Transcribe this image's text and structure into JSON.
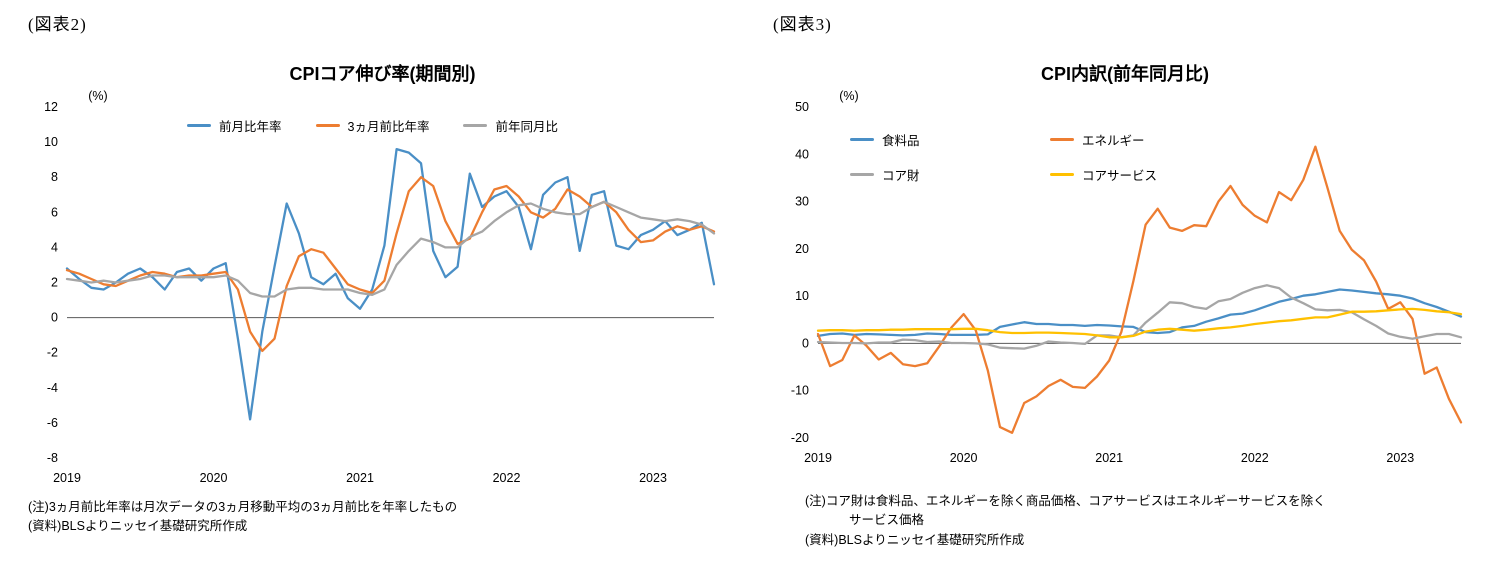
{
  "page": {
    "figure2_label": "(図表2)",
    "figure3_label": "(図表3)"
  },
  "chart_data": [
    {
      "type": "line",
      "title": "CPIコア伸び率(期間別)",
      "unit_label": "(%)",
      "x_start_month": "2019-01",
      "x_tick_labels": [
        "2019",
        "2020",
        "2021",
        "2022",
        "2023"
      ],
      "x_tick_month_indices": [
        0,
        12,
        24,
        36,
        48
      ],
      "ylim": [
        -8,
        12
      ],
      "yticks": [
        12,
        10,
        8,
        6,
        4,
        2,
        0,
        -2,
        -4,
        -6,
        -8
      ],
      "grid": false,
      "legend_position": "top-center-inside",
      "series": [
        {
          "name": "前月比年率",
          "key": "mom-annualized",
          "color": "#4A8FC6",
          "values": [
            2.8,
            2.2,
            1.7,
            1.6,
            2.0,
            2.5,
            2.8,
            2.3,
            1.6,
            2.6,
            2.8,
            2.1,
            2.8,
            3.1,
            -1.2,
            -5.8,
            -0.8,
            2.9,
            6.5,
            4.8,
            2.3,
            1.9,
            2.5,
            1.1,
            0.5,
            1.6,
            4.1,
            9.6,
            9.4,
            8.8,
            3.8,
            2.3,
            2.9,
            8.2,
            6.3,
            6.9,
            7.2,
            6.3,
            3.9,
            7.0,
            7.7,
            8.0,
            3.8,
            7.0,
            7.2,
            4.1,
            3.9,
            4.7,
            5.0,
            5.5,
            4.7,
            5.0,
            5.4,
            1.9
          ]
        },
        {
          "name": "3ヵ月前比年率",
          "key": "three-month-annualized",
          "color": "#ED7D31",
          "values": [
            2.7,
            2.5,
            2.2,
            1.9,
            1.8,
            2.1,
            2.4,
            2.6,
            2.5,
            2.3,
            2.4,
            2.4,
            2.5,
            2.6,
            1.6,
            -0.8,
            -1.9,
            -1.2,
            1.8,
            3.5,
            3.9,
            3.7,
            2.8,
            1.9,
            1.6,
            1.4,
            2.1,
            4.8,
            7.2,
            8.0,
            7.5,
            5.5,
            4.2,
            4.5,
            6.0,
            7.3,
            7.5,
            6.9,
            6.0,
            5.7,
            6.2,
            7.3,
            6.9,
            6.3,
            6.6,
            6.0,
            5.0,
            4.3,
            4.4,
            4.9,
            5.2,
            5.0,
            5.2,
            4.9
          ]
        },
        {
          "name": "前年同月比",
          "key": "year-over-year",
          "color": "#A6A6A6",
          "values": [
            2.2,
            2.1,
            2.0,
            2.1,
            2.0,
            2.1,
            2.2,
            2.4,
            2.4,
            2.3,
            2.3,
            2.3,
            2.3,
            2.4,
            2.1,
            1.4,
            1.2,
            1.2,
            1.6,
            1.7,
            1.7,
            1.6,
            1.6,
            1.6,
            1.4,
            1.3,
            1.6,
            3.0,
            3.8,
            4.5,
            4.3,
            4.0,
            4.0,
            4.6,
            4.9,
            5.5,
            6.0,
            6.4,
            6.5,
            6.2,
            6.0,
            5.9,
            5.9,
            6.3,
            6.6,
            6.3,
            6.0,
            5.7,
            5.6,
            5.5,
            5.6,
            5.5,
            5.3,
            4.8
          ]
        }
      ],
      "notes": [
        "(注)3ヵ月前比年率は月次データの3ヵ月移動平均の3ヵ月前比を年率したもの",
        "(資料)BLSよりニッセイ基礎研究所作成"
      ]
    },
    {
      "type": "line",
      "title": "CPI内訳(前年同月比)",
      "unit_label": "(%)",
      "x_start_month": "2019-01",
      "x_tick_labels": [
        "2019",
        "2020",
        "2021",
        "2022",
        "2023"
      ],
      "x_tick_month_indices": [
        0,
        12,
        24,
        36,
        48
      ],
      "ylim": [
        -20,
        50
      ],
      "yticks": [
        50,
        40,
        30,
        20,
        10,
        0,
        -10,
        -20
      ],
      "grid": false,
      "legend_position": "top-left-inside",
      "series": [
        {
          "name": "食料品",
          "key": "food",
          "color": "#4A8FC6",
          "values": [
            1.6,
            2.0,
            2.1,
            1.8,
            2.0,
            1.9,
            1.8,
            1.7,
            1.8,
            2.1,
            2.0,
            1.8,
            1.8,
            1.8,
            1.9,
            3.5,
            4.0,
            4.5,
            4.1,
            4.1,
            3.9,
            3.9,
            3.7,
            3.9,
            3.8,
            3.6,
            3.5,
            2.4,
            2.2,
            2.4,
            3.4,
            3.7,
            4.6,
            5.3,
            6.1,
            6.3,
            7.0,
            7.9,
            8.8,
            9.4,
            10.1,
            10.4,
            10.9,
            11.4,
            11.2,
            10.9,
            10.6,
            10.4,
            10.1,
            9.5,
            8.5,
            7.7,
            6.7,
            5.7
          ]
        },
        {
          "name": "エネルギー",
          "key": "energy",
          "color": "#ED7D31",
          "values": [
            2.0,
            -4.8,
            -3.5,
            1.7,
            -0.5,
            -3.4,
            -2.0,
            -4.4,
            -4.8,
            -4.2,
            -0.6,
            3.4,
            6.2,
            2.8,
            -5.7,
            -17.7,
            -18.9,
            -12.6,
            -11.2,
            -9.0,
            -7.7,
            -9.2,
            -9.4,
            -7.0,
            -3.6,
            2.4,
            13.2,
            25.1,
            28.5,
            24.5,
            23.8,
            25.0,
            24.8,
            30.0,
            33.3,
            29.3,
            27.0,
            25.6,
            32.0,
            30.3,
            34.6,
            41.6,
            32.9,
            23.8,
            19.8,
            17.6,
            13.1,
            7.3,
            8.7,
            5.2,
            -6.4,
            -5.1,
            -11.7,
            -16.7
          ]
        },
        {
          "name": "コア財",
          "key": "core-goods",
          "color": "#A6A6A6",
          "values": [
            0.3,
            0.2,
            0.1,
            0.1,
            0.0,
            0.2,
            0.2,
            0.8,
            0.7,
            0.3,
            0.4,
            0.1,
            0.1,
            0.0,
            -0.2,
            -0.9,
            -1.0,
            -1.1,
            -0.5,
            0.4,
            0.2,
            0.1,
            -0.1,
            1.7,
            1.7,
            1.3,
            1.7,
            4.4,
            6.5,
            8.7,
            8.5,
            7.7,
            7.3,
            8.9,
            9.4,
            10.7,
            11.7,
            12.3,
            11.7,
            9.7,
            8.5,
            7.2,
            7.0,
            7.1,
            6.6,
            5.1,
            3.7,
            2.1,
            1.4,
            1.0,
            1.5,
            2.0,
            2.0,
            1.3
          ]
        },
        {
          "name": "コアサービス",
          "key": "core-services",
          "color": "#FFC000",
          "values": [
            2.7,
            2.8,
            2.8,
            2.7,
            2.8,
            2.8,
            2.9,
            2.9,
            3.0,
            3.0,
            3.0,
            3.0,
            3.1,
            3.1,
            2.8,
            2.4,
            2.2,
            2.2,
            2.3,
            2.3,
            2.2,
            2.1,
            2.0,
            1.7,
            1.3,
            1.3,
            1.6,
            2.5,
            2.9,
            3.1,
            2.9,
            2.7,
            2.9,
            3.2,
            3.4,
            3.7,
            4.1,
            4.4,
            4.7,
            4.9,
            5.2,
            5.5,
            5.5,
            6.1,
            6.7,
            6.7,
            6.8,
            7.0,
            7.2,
            7.3,
            7.1,
            6.8,
            6.6,
            6.2
          ]
        }
      ],
      "notes": [
        "(注)コア財は食料品、エネルギーを除く商品価格、コアサービスはエネルギーサービスを除く",
        "サービス価格",
        "(資料)BLSよりニッセイ基礎研究所作成"
      ]
    }
  ]
}
